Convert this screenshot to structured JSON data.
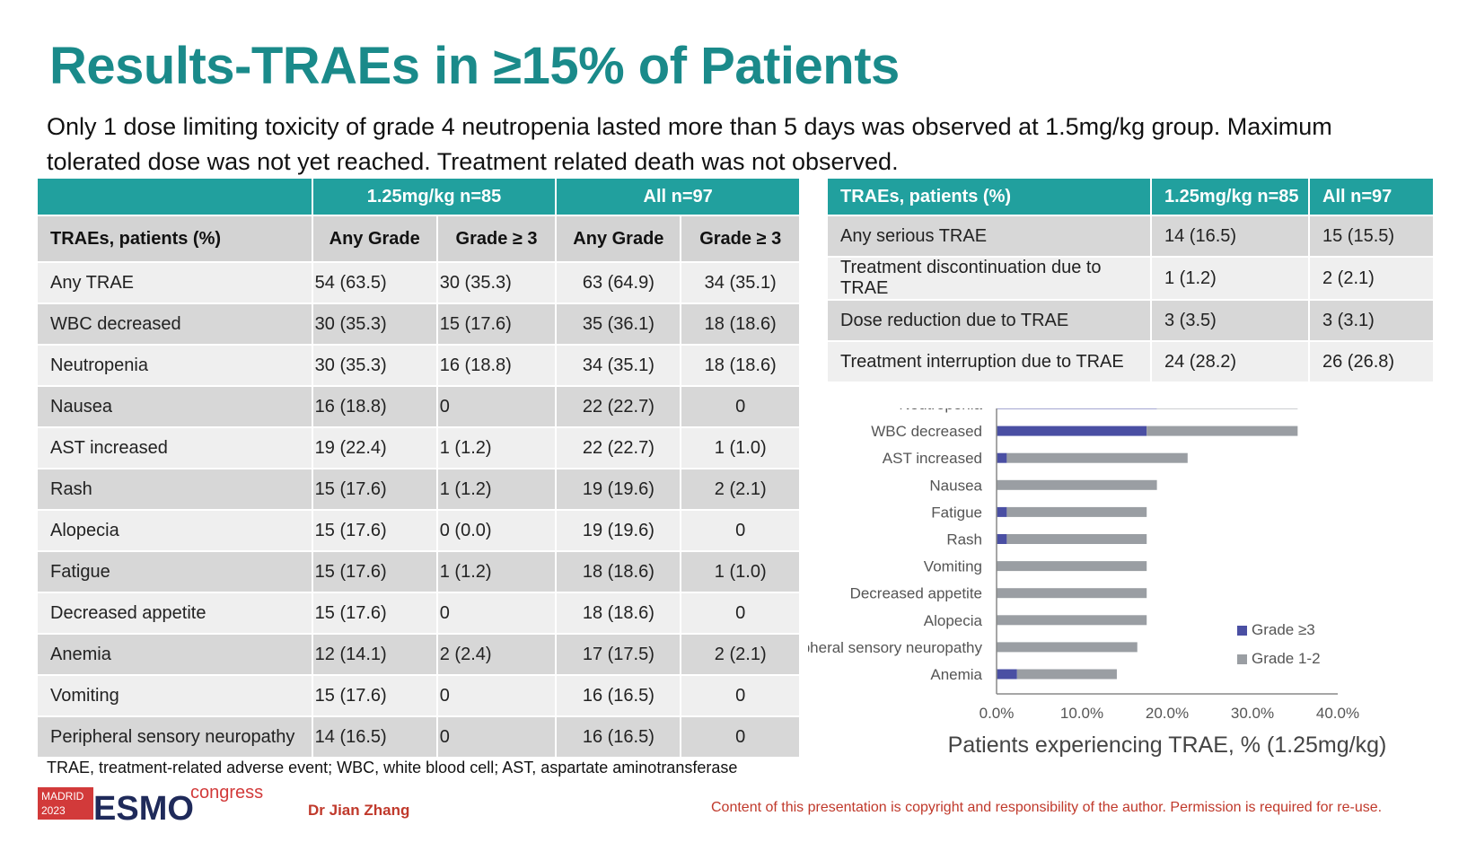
{
  "title": "Results-TRAEs in ≥15% of Patients",
  "subtitle": "Only 1 dose limiting toxicity of grade 4 neutropenia lasted more than 5 days was observed at 1.5mg/kg group. Maximum tolerated dose was not yet reached. Treatment related death was not observed.",
  "left_table": {
    "group_headers": [
      "1.25mg/kg n=85",
      "All n=97"
    ],
    "col_headers": [
      "TRAEs, patients (%)",
      "Any Grade",
      "Grade ≥ 3",
      "Any Grade",
      "Grade ≥ 3"
    ],
    "rows": [
      [
        "Any TRAE",
        "54 (63.5)",
        "30 (35.3)",
        "63 (64.9)",
        "34 (35.1)"
      ],
      [
        "WBC decreased",
        "30 (35.3)",
        "15 (17.6)",
        "35 (36.1)",
        "18 (18.6)"
      ],
      [
        "Neutropenia",
        "30 (35.3)",
        "16 (18.8)",
        "34 (35.1)",
        "18 (18.6)"
      ],
      [
        "Nausea",
        "16 (18.8)",
        "0",
        "22 (22.7)",
        "0"
      ],
      [
        "AST increased",
        "19 (22.4)",
        "1 (1.2)",
        "22 (22.7)",
        "1 (1.0)"
      ],
      [
        "Rash",
        "15 (17.6)",
        "1 (1.2)",
        "19 (19.6)",
        "2 (2.1)"
      ],
      [
        "Alopecia",
        "15 (17.6)",
        "0 (0.0)",
        "19 (19.6)",
        "0"
      ],
      [
        "Fatigue",
        "15 (17.6)",
        "1 (1.2)",
        "18 (18.6)",
        "1 (1.0)"
      ],
      [
        "Decreased appetite",
        "15 (17.6)",
        "0",
        "18 (18.6)",
        "0"
      ],
      [
        "Anemia",
        "12 (14.1)",
        "2 (2.4)",
        "17 (17.5)",
        "2 (2.1)"
      ],
      [
        "Vomiting",
        "15 (17.6)",
        "0",
        "16 (16.5)",
        "0"
      ],
      [
        "Peripheral sensory neuropathy",
        "14 (16.5)",
        "0",
        "16 (16.5)",
        "0"
      ]
    ]
  },
  "right_table": {
    "headers": [
      "TRAEs, patients (%)",
      "1.25mg/kg n=85",
      "All n=97"
    ],
    "rows": [
      [
        "Any serious TRAE",
        "14 (16.5)",
        "15 (15.5)"
      ],
      [
        "Treatment discontinuation due to TRAE",
        "1 (1.2)",
        "2 (2.1)"
      ],
      [
        "Dose reduction due to TRAE",
        "3 (3.5)",
        "3 (3.1)"
      ],
      [
        "Treatment interruption due to TRAE",
        "24 (28.2)",
        "26 (26.8)"
      ]
    ]
  },
  "chart_data": {
    "type": "bar",
    "orientation": "horizontal",
    "stacked": true,
    "categories": [
      "Neutropenia",
      "WBC decreased",
      "AST increased",
      "Nausea",
      "Fatigue",
      "Rash",
      "Vomiting",
      "Decreased appetite",
      "Alopecia",
      "Peripheral sensory neuropathy",
      "Anemia"
    ],
    "series": [
      {
        "name": "Grade ≥3",
        "color": "#4a4fa3",
        "values": [
          18.8,
          17.6,
          1.2,
          0,
          1.2,
          1.2,
          0,
          0,
          0,
          0,
          2.4
        ]
      },
      {
        "name": "Grade 1-2",
        "color": "#9a9ea3",
        "values": [
          16.5,
          17.7,
          21.2,
          18.8,
          16.4,
          16.4,
          17.6,
          17.6,
          17.6,
          16.5,
          11.7
        ]
      }
    ],
    "xlim": [
      0,
      40
    ],
    "xticks": [
      "0.0%",
      "10.0%",
      "20.0%",
      "30.0%",
      "40.0%"
    ],
    "xlabel": "Patients experiencing TRAE, % (1.25mg/kg)",
    "legend": "bottom-right",
    "grid": false
  },
  "footnote": "TRAE, treatment-related adverse event; WBC, white blood cell; AST, aspartate aminotransferase",
  "logo": {
    "city": "MADRID",
    "year": "2023",
    "brand": "ESMO",
    "word": "congress"
  },
  "author": "Dr Jian Zhang",
  "copyright": "Content of this presentation is copyright and responsibility of the author. Permission is required for re-use."
}
